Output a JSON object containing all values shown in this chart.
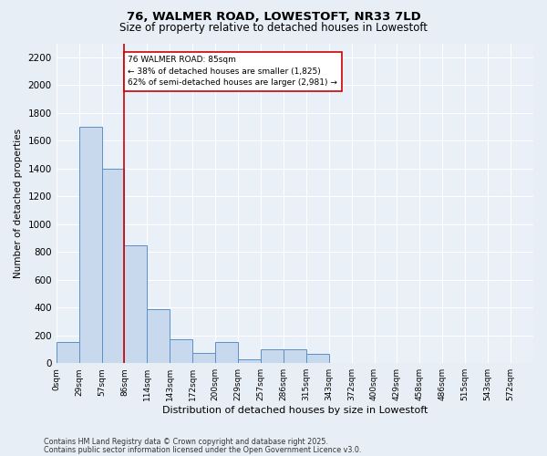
{
  "title1": "76, WALMER ROAD, LOWESTOFT, NR33 7LD",
  "title2": "Size of property relative to detached houses in Lowestoft",
  "xlabel": "Distribution of detached houses by size in Lowestoft",
  "ylabel": "Number of detached properties",
  "bar_labels": [
    "0sqm",
    "29sqm",
    "57sqm",
    "86sqm",
    "114sqm",
    "143sqm",
    "172sqm",
    "200sqm",
    "229sqm",
    "257sqm",
    "286sqm",
    "315sqm",
    "343sqm",
    "372sqm",
    "400sqm",
    "429sqm",
    "458sqm",
    "486sqm",
    "515sqm",
    "543sqm",
    "572sqm"
  ],
  "bar_values": [
    150,
    1700,
    1400,
    850,
    390,
    175,
    75,
    155,
    25,
    100,
    100,
    70,
    0,
    0,
    0,
    0,
    0,
    0,
    0,
    0,
    0
  ],
  "bar_color": "#c9d9ed",
  "bar_edge_color": "#5b8fc9",
  "ylim": [
    0,
    2300
  ],
  "yticks": [
    0,
    200,
    400,
    600,
    800,
    1000,
    1200,
    1400,
    1600,
    1800,
    2000,
    2200
  ],
  "red_line_x": 3,
  "annotation_line1": "76 WALMER ROAD: 85sqm",
  "annotation_line2": "← 38% of detached houses are smaller (1,825)",
  "annotation_line3": "62% of semi-detached houses are larger (2,981) →",
  "annotation_box_color": "#ffffff",
  "annotation_box_edge": "#cc0000",
  "footnote1": "Contains HM Land Registry data © Crown copyright and database right 2025.",
  "footnote2": "Contains public sector information licensed under the Open Government Licence v3.0.",
  "bg_color": "#e8eef5",
  "plot_bg_color": "#eaf0f8",
  "grid_color": "#ffffff"
}
